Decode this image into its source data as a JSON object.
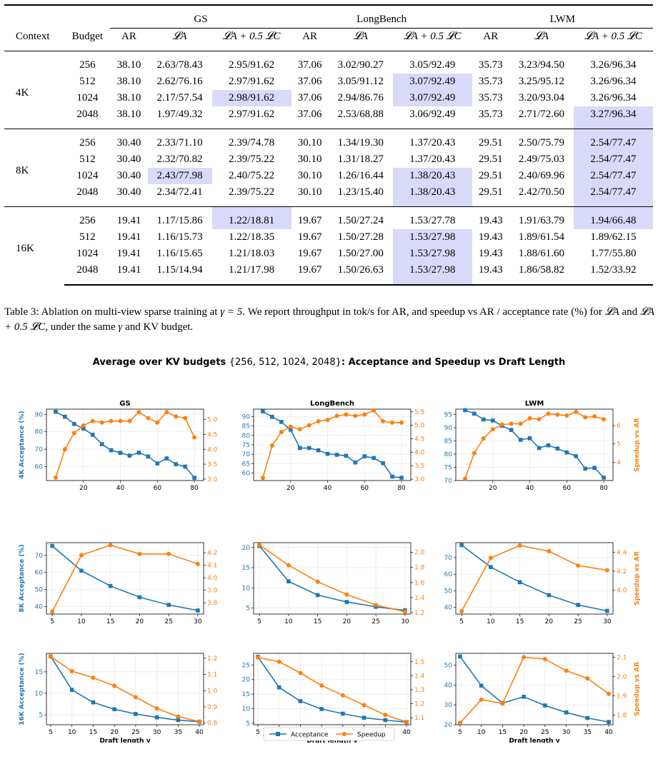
{
  "table": {
    "group_headers": [
      "GS",
      "LongBench",
      "LWM"
    ],
    "col_headers": [
      "Context",
      "Budget",
      "AR",
      "𝓛A",
      "𝓛A + 0.5 𝓛C"
    ],
    "groups": [
      {
        "context": "4K",
        "rows": [
          [
            "256",
            "38.10",
            "2.63/78.43",
            "2.95/91.62",
            "37.06",
            "3.02/90.27",
            "3.05/92.49",
            "35.73",
            "3.23/94.50",
            "3.26/96.34"
          ],
          [
            "512",
            "38.10",
            "2.62/76.16",
            "2.97/91.62",
            "37.06",
            "3.05/91.12",
            "3.07/92.49",
            "35.73",
            "3.25/95.12",
            "3.26/96.34"
          ],
          [
            "1024",
            "38.10",
            "2.17/57.54",
            "2.98/91.62",
            "37.06",
            "2.94/86.76",
            "3.07/92.49",
            "35.73",
            "3.20/93.04",
            "3.26/96.34"
          ],
          [
            "2048",
            "38.10",
            "1.97/49.32",
            "2.97/91.62",
            "37.06",
            "2.53/68.88",
            "3.06/92.49",
            "35.73",
            "2.71/72.60",
            "3.27/96.34"
          ]
        ]
      },
      {
        "context": "8K",
        "rows": [
          [
            "256",
            "30.40",
            "2.33/71.10",
            "2.39/74.78",
            "30.10",
            "1.34/19.30",
            "1.37/20.43",
            "29.51",
            "2.50/75.79",
            "2.54/77.47"
          ],
          [
            "512",
            "30.40",
            "2.32/70.82",
            "2.39/75.22",
            "30.10",
            "1.31/18.27",
            "1.37/20.43",
            "29.51",
            "2.49/75.03",
            "2.54/77.47"
          ],
          [
            "1024",
            "30.40",
            "2.43/77.98",
            "2.40/75.22",
            "30.10",
            "1.26/16.44",
            "1.38/20.43",
            "29.51",
            "2.40/69.96",
            "2.54/77.47"
          ],
          [
            "2048",
            "30.40",
            "2.34/72.41",
            "2.39/75.22",
            "30.10",
            "1.23/15.40",
            "1.38/20.43",
            "29.51",
            "2.42/70.50",
            "2.54/77.47"
          ]
        ]
      },
      {
        "context": "16K",
        "rows": [
          [
            "256",
            "19.41",
            "1.17/15.86",
            "1.22/18.81",
            "19.67",
            "1.50/27.24",
            "1.53/27.78",
            "19.43",
            "1.91/63.79",
            "1.94/66.48"
          ],
          [
            "512",
            "19.41",
            "1.16/15.73",
            "1.22/18.35",
            "19.67",
            "1.50/27.28",
            "1.53/27.98",
            "19.43",
            "1.89/61.54",
            "1.89/62.15"
          ],
          [
            "1024",
            "19.41",
            "1.16/15.65",
            "1.21/18.03",
            "19.67",
            "1.50/27.00",
            "1.53/27.98",
            "19.43",
            "1.88/61.60",
            "1.77/55.80"
          ],
          [
            "2048",
            "19.41",
            "1.15/14.94",
            "1.21/17.98",
            "19.67",
            "1.50/26.63",
            "1.53/27.98",
            "19.43",
            "1.86/58.82",
            "1.52/33.92"
          ]
        ]
      }
    ],
    "highlights": [
      [
        [
          2,
          3
        ],
        [
          1,
          6
        ],
        [
          2,
          6
        ],
        [
          3,
          9
        ]
      ],
      [
        [
          2,
          2
        ],
        [
          2,
          6
        ],
        [
          3,
          6
        ],
        [
          0,
          9
        ],
        [
          1,
          9
        ],
        [
          2,
          9
        ],
        [
          3,
          9
        ]
      ],
      [
        [
          0,
          3
        ],
        [
          1,
          6
        ],
        [
          2,
          6
        ],
        [
          3,
          6
        ],
        [
          0,
          9
        ]
      ]
    ],
    "highlight_color": "#d9d9fa"
  },
  "caption": {
    "part1": "Table 3: Ablation on multi-view sparse training at ",
    "gamma_eq": "γ = 5",
    "part2": ". We report throughput in tok/s for AR, and speedup vs AR / acceptance rate (%) for ",
    "la": "𝓛A",
    "part3": " and ",
    "lac": "𝓛A + 0.5 𝓛C",
    "part4": ", under the same ",
    "gamma": "γ",
    "part5": " and KV budget."
  },
  "figure": {
    "title_a": "Average over KV budgets ",
    "title_b": "{256, 512, 1024, 2048}",
    "title_c": ": Acceptance and Speedup vs Draft Length",
    "xlabel": "Draft length γ",
    "right_ylabel": "Speedup vs AR",
    "legend": [
      "Acceptance",
      "Speedup"
    ],
    "colors": {
      "acceptance": "#1f77b4",
      "speedup": "#ff7f0e"
    }
  },
  "chart_data": [
    {
      "type": "line",
      "panel": "GS 4K",
      "title": "GS",
      "ylabel": "4K Acceptance (%)",
      "right_ylabel": "",
      "xlabel": "",
      "x": [
        5,
        10,
        15,
        20,
        25,
        30,
        35,
        40,
        45,
        50,
        55,
        60,
        65,
        70,
        75,
        80
      ],
      "series": [
        {
          "name": "Acceptance",
          "values": [
            91.5,
            88.6,
            84.5,
            81.8,
            78.3,
            72.9,
            69.4,
            67.9,
            66.3,
            68.0,
            65.8,
            61.8,
            64.7,
            61.4,
            60.0,
            53.6
          ]
        },
        {
          "name": "Speedup",
          "values": [
            3.05,
            4.0,
            4.55,
            4.8,
            4.95,
            4.9,
            4.95,
            4.95,
            4.95,
            5.25,
            5.05,
            4.9,
            5.25,
            5.1,
            5.05,
            4.4
          ]
        }
      ],
      "xlim": [
        0,
        85
      ],
      "ylim": [
        52,
        93
      ],
      "ylim_right": [
        2.95,
        5.35
      ],
      "yticks": [
        60,
        70,
        80,
        90
      ],
      "yticks_right": [
        3.0,
        3.5,
        4.0,
        4.5,
        5.0
      ],
      "xticks": [
        20,
        40,
        60,
        80
      ]
    },
    {
      "type": "line",
      "panel": "LongBench 4K",
      "title": "LongBench",
      "ylabel": "",
      "right_ylabel": "",
      "xlabel": "",
      "x": [
        5,
        10,
        15,
        20,
        25,
        30,
        35,
        40,
        45,
        50,
        55,
        60,
        65,
        70,
        75,
        80
      ],
      "series": [
        {
          "name": "Acceptance",
          "values": [
            92.8,
            89.9,
            87.2,
            83.0,
            73.3,
            73.3,
            72.1,
            70.2,
            69.7,
            69.2,
            65.6,
            68.9,
            68.0,
            65.2,
            58.1,
            57.5
          ]
        },
        {
          "name": "Speedup",
          "values": [
            3.05,
            4.25,
            4.75,
            4.95,
            4.85,
            5.0,
            5.15,
            5.2,
            5.35,
            5.4,
            5.35,
            5.4,
            5.55,
            5.15,
            5.1,
            5.1
          ]
        }
      ],
      "xlim": [
        0,
        85
      ],
      "ylim": [
        56,
        94
      ],
      "ylim_right": [
        2.95,
        5.6
      ],
      "yticks": [
        60,
        65,
        70,
        75,
        80,
        85,
        90
      ],
      "yticks_right": [
        3.0,
        3.5,
        4.0,
        4.5,
        5.0,
        5.5
      ],
      "xticks": [
        20,
        40,
        60,
        80
      ]
    },
    {
      "type": "line",
      "panel": "LWM 4K",
      "title": "LWM",
      "ylabel": "",
      "right_ylabel": "Speedup vs AR",
      "xlabel": "",
      "x": [
        5,
        10,
        15,
        20,
        25,
        30,
        35,
        40,
        45,
        50,
        55,
        60,
        65,
        70,
        75,
        80
      ],
      "series": [
        {
          "name": "Acceptance",
          "values": [
            96.6,
            95.3,
            93.1,
            92.7,
            90.7,
            89.1,
            85.4,
            86.0,
            82.3,
            83.3,
            82.1,
            80.6,
            79.2,
            74.5,
            74.8,
            71.1
          ]
        },
        {
          "name": "Speedup",
          "values": [
            3.1,
            4.5,
            5.3,
            5.8,
            6.05,
            6.1,
            6.1,
            6.4,
            6.35,
            6.65,
            6.6,
            6.55,
            6.75,
            6.45,
            6.5,
            6.35
          ]
        }
      ],
      "xlim": [
        0,
        85
      ],
      "ylim": [
        70,
        97
      ],
      "ylim_right": [
        3.0,
        6.9
      ],
      "yticks": [
        70,
        75,
        80,
        85,
        90,
        95
      ],
      "yticks_right": [
        4,
        5,
        6
      ],
      "xticks": [
        20,
        40,
        60,
        80
      ]
    },
    {
      "type": "line",
      "panel": "GS 8K",
      "title": "",
      "ylabel": "8K Acceptance (%)",
      "right_ylabel": "",
      "xlabel": "",
      "x": [
        5,
        10,
        15,
        20,
        25,
        30
      ],
      "series": [
        {
          "name": "Acceptance",
          "values": [
            75.6,
            61.0,
            52.0,
            45.4,
            40.9,
            37.6
          ]
        },
        {
          "name": "Speedup",
          "values": [
            3.73,
            4.18,
            4.26,
            4.19,
            4.19,
            4.11
          ]
        }
      ],
      "xlim": [
        4,
        31
      ],
      "ylim": [
        35.5,
        77.5
      ],
      "ylim_right": [
        3.71,
        4.28
      ],
      "yticks": [
        40,
        50,
        60,
        70
      ],
      "yticks_right": [
        3.8,
        3.9,
        4.0,
        4.1,
        4.2
      ],
      "xticks": [
        5,
        10,
        15,
        20,
        25,
        30
      ]
    },
    {
      "type": "line",
      "panel": "LongBench 8K",
      "title": "",
      "ylabel": "",
      "right_ylabel": "",
      "xlabel": "",
      "x": [
        5,
        10,
        15,
        20,
        25,
        30
      ],
      "series": [
        {
          "name": "Acceptance",
          "values": [
            20.4,
            11.6,
            8.2,
            6.5,
            5.3,
            4.4
          ]
        },
        {
          "name": "Speedup",
          "values": [
            2.1,
            1.83,
            1.61,
            1.44,
            1.3,
            1.21
          ]
        }
      ],
      "xlim": [
        4,
        31
      ],
      "ylim": [
        3.5,
        21.2
      ],
      "ylim_right": [
        1.18,
        2.13
      ],
      "yticks": [
        5,
        10,
        15,
        20
      ],
      "yticks_right": [
        1.2,
        1.4,
        1.6,
        1.8,
        2.0
      ],
      "xticks": [
        5,
        10,
        15,
        20,
        25,
        30
      ]
    },
    {
      "type": "line",
      "panel": "LWM 8K",
      "title": "",
      "ylabel": "",
      "right_ylabel": "Speedup vs AR",
      "xlabel": "",
      "x": [
        5,
        10,
        15,
        20,
        25,
        30
      ],
      "series": [
        {
          "name": "Acceptance",
          "values": [
            77.5,
            64.3,
            55.2,
            47.4,
            41.5,
            37.9
          ]
        },
        {
          "name": "Speedup",
          "values": [
            3.78,
            4.34,
            4.47,
            4.41,
            4.26,
            4.21
          ]
        }
      ],
      "xlim": [
        4,
        31
      ],
      "ylim": [
        36,
        79
      ],
      "ylim_right": [
        3.75,
        4.5
      ],
      "yticks": [
        40,
        50,
        60,
        70
      ],
      "yticks_right": [
        4.0,
        4.2,
        4.4
      ],
      "xticks": [
        5,
        10,
        15,
        20,
        25,
        30
      ]
    },
    {
      "type": "line",
      "panel": "GS 16K",
      "title": "",
      "ylabel": "16K Acceptance (%)",
      "right_ylabel": "",
      "xlabel": "Draft length γ",
      "x": [
        5,
        10,
        15,
        20,
        25,
        30,
        35,
        40
      ],
      "series": [
        {
          "name": "Acceptance",
          "values": [
            18.6,
            10.8,
            7.9,
            6.3,
            5.2,
            4.4,
            3.8,
            3.4
          ]
        },
        {
          "name": "Speedup",
          "values": [
            1.21,
            1.12,
            1.08,
            1.03,
            0.96,
            0.89,
            0.84,
            0.81
          ]
        }
      ],
      "xlim": [
        4,
        41
      ],
      "ylim": [
        2.7,
        19.3
      ],
      "ylim_right": [
        0.79,
        1.23
      ],
      "yticks": [
        5,
        10,
        15
      ],
      "yticks_right": [
        0.8,
        0.9,
        1.0,
        1.1,
        1.2
      ],
      "xticks": [
        5,
        10,
        15,
        20,
        25,
        30,
        35,
        40
      ]
    },
    {
      "type": "line",
      "panel": "LongBench 16K",
      "title": "",
      "ylabel": "",
      "right_ylabel": "",
      "xlabel": "Draft length γ",
      "x": [
        5,
        10,
        15,
        20,
        25,
        30,
        35,
        40
      ],
      "series": [
        {
          "name": "Acceptance",
          "values": [
            27.8,
            17.3,
            12.6,
            9.9,
            8.3,
            6.9,
            6.1,
            5.4
          ]
        },
        {
          "name": "Speedup",
          "values": [
            1.53,
            1.5,
            1.42,
            1.33,
            1.26,
            1.19,
            1.12,
            1.07
          ]
        }
      ],
      "xlim": [
        4,
        41
      ],
      "ylim": [
        4.5,
        29
      ],
      "ylim_right": [
        1.05,
        1.56
      ],
      "yticks": [
        5,
        10,
        15,
        20,
        25
      ],
      "yticks_right": [
        1.1,
        1.2,
        1.3,
        1.4,
        1.5
      ],
      "xticks": [
        5,
        10,
        15,
        20,
        25,
        30,
        35,
        40
      ]
    },
    {
      "type": "line",
      "panel": "LWM 16K",
      "title": "",
      "ylabel": "",
      "right_ylabel": "Speedup vs AR",
      "xlabel": "Draft length γ",
      "x": [
        5,
        10,
        15,
        20,
        25,
        30,
        35,
        40
      ],
      "series": [
        {
          "name": "Acceptance",
          "values": [
            54.4,
            39.7,
            30.9,
            34.1,
            29.7,
            26.2,
            23.4,
            21.4
          ]
        },
        {
          "name": "Speedup",
          "values": [
            1.76,
            1.88,
            1.86,
            2.1,
            2.09,
            2.03,
            1.99,
            1.91
          ]
        }
      ],
      "xlim": [
        4,
        41
      ],
      "ylim": [
        20,
        56
      ],
      "ylim_right": [
        1.75,
        2.12
      ],
      "yticks": [
        20,
        30,
        40,
        50
      ],
      "yticks_right": [
        1.8,
        1.9,
        2.0,
        2.1
      ],
      "xticks": [
        5,
        10,
        15,
        20,
        25,
        30,
        35,
        40
      ]
    }
  ]
}
